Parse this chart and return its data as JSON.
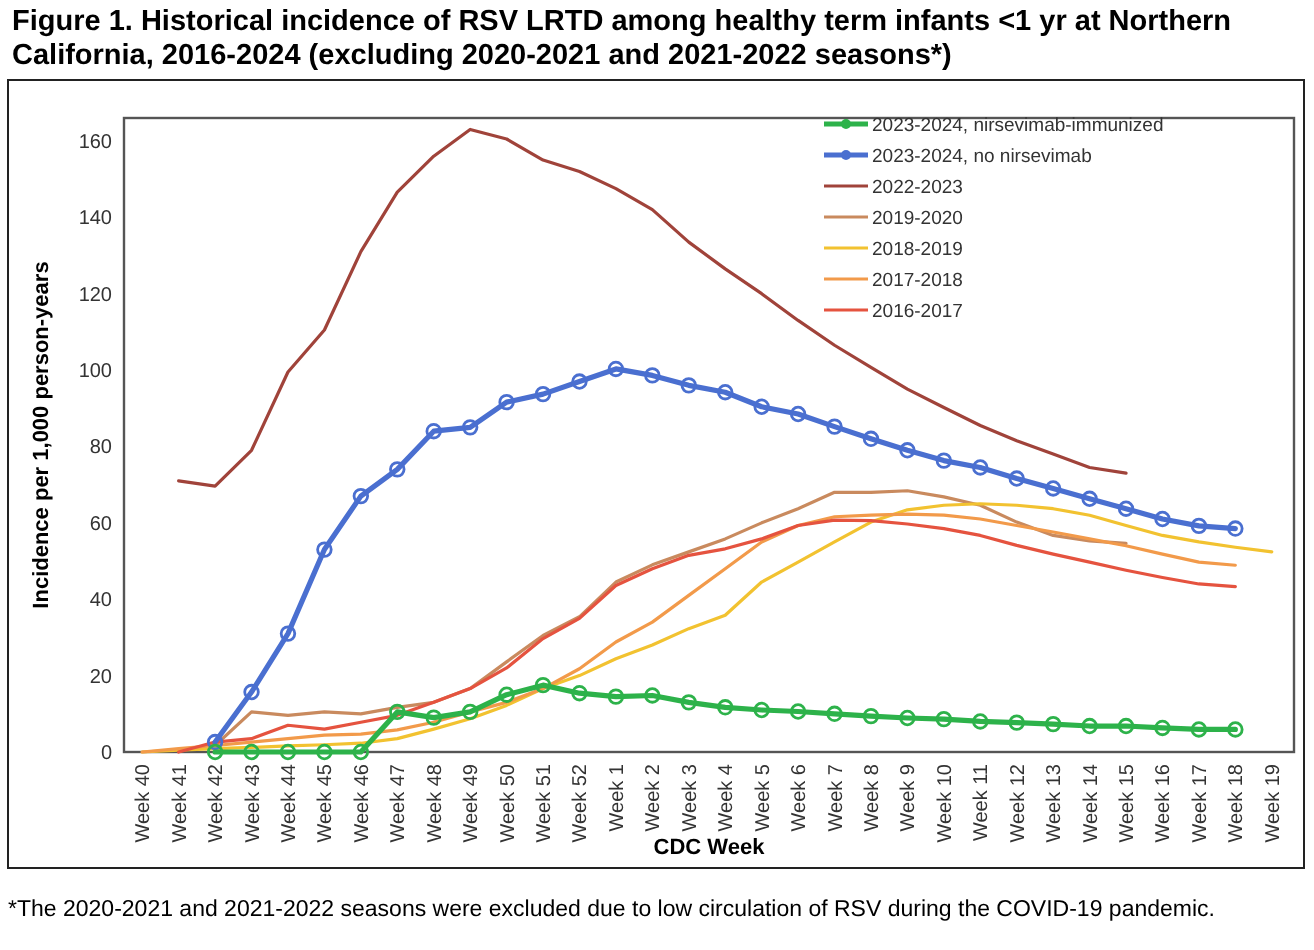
{
  "chart_data": {
    "type": "line",
    "title": "Figure 1. Historical incidence of RSV LRTD among healthy term infants <1 yr at Northern California, 2016-2024 (excluding 2020-2021 and 2021-2022 seasons*)",
    "xlabel": "CDC Week",
    "ylabel": "Incidence per 1,000 person-years",
    "annotations": [
      "*The 2020-2021 and 2021-2022 seasons were excluded due to low circulation of RSV during the COVID-19 pandemic."
    ],
    "categories": [
      "Week 40",
      "Week 41",
      "Week 42",
      "Week 43",
      "Week 44",
      "Week 45",
      "Week 46",
      "Week 47",
      "Week 48",
      "Week 49",
      "Week 50",
      "Week 51",
      "Week 52",
      "Week 1",
      "Week 2",
      "Week 3",
      "Week 4",
      "Week 5",
      "Week 6",
      "Week 7",
      "Week 8",
      "Week 9",
      "Week 10",
      "Week 11",
      "Week 12",
      "Week 13",
      "Week 14",
      "Week 15",
      "Week 16",
      "Week 17",
      "Week 18",
      "Week 19"
    ],
    "ylim": [
      0,
      166
    ],
    "yticks": [
      0,
      20,
      40,
      60,
      80,
      100,
      120,
      140,
      160
    ],
    "grid": false,
    "legend": "top right",
    "line_style": "solid",
    "series": [
      {
        "name": "2023-2024, nirsevimab-immunized",
        "color": "#2db24a",
        "marker": "circle",
        "values": [
          null,
          null,
          0,
          0,
          0,
          0,
          0,
          10.5,
          9,
          10.5,
          15,
          17.5,
          15.4,
          14.5,
          14.8,
          13,
          11.7,
          11,
          10.6,
          10,
          9.4,
          8.9,
          8.6,
          8,
          7.7,
          7.3,
          6.8,
          6.8,
          6.3,
          5.9,
          5.9,
          null
        ]
      },
      {
        "name": "2023-2024, no nirsevimab",
        "color": "#4a6fd0",
        "marker": "circle",
        "values": [
          null,
          null,
          2.6,
          15.7,
          31,
          53,
          67,
          74,
          84,
          85,
          91.6,
          93.7,
          97,
          100.3,
          98.6,
          96,
          94.2,
          90.4,
          88.5,
          85.2,
          82,
          79,
          76.3,
          74.5,
          71.6,
          69,
          66.3,
          63.7,
          61,
          59.2,
          58.5,
          null
        ]
      },
      {
        "name": "2022-2023",
        "color": "#a0433a",
        "marker": "none",
        "values": [
          null,
          71,
          69.6,
          79,
          99.5,
          110.5,
          131,
          146.6,
          156,
          163,
          160.5,
          155,
          152,
          147.5,
          142,
          133.5,
          126.5,
          120,
          113,
          106.5,
          100.7,
          95,
          90.2,
          85.5,
          81.5,
          78,
          74.5,
          73,
          null,
          null,
          null,
          null
        ]
      },
      {
        "name": "2019-2020",
        "color": "#c98a5e",
        "marker": "none",
        "values": [
          null,
          null,
          1.7,
          10.5,
          9.6,
          10.5,
          10,
          11.7,
          13,
          16.6,
          23.6,
          30.5,
          35.4,
          44.5,
          49,
          52.4,
          55.8,
          60,
          63.7,
          68,
          68,
          68.4,
          66.8,
          64.6,
          60.2,
          56.7,
          55.3,
          54.6,
          null,
          null,
          null,
          null
        ]
      },
      {
        "name": "2018-2019",
        "color": "#f2c230",
        "marker": "none",
        "values": [
          0,
          0.5,
          0.9,
          1.2,
          1.6,
          1.9,
          2.3,
          3.5,
          6,
          8.7,
          12.2,
          16.6,
          20,
          24.4,
          28,
          32.3,
          35.8,
          44.5,
          49.7,
          55,
          60.2,
          63.4,
          64.6,
          65,
          64.6,
          63.7,
          62,
          59.3,
          56.7,
          55,
          53.6,
          52.4
        ]
      },
      {
        "name": "2017-2018",
        "color": "#f29a4a",
        "marker": "none",
        "values": [
          0,
          0.9,
          1.7,
          2.6,
          3.5,
          4.4,
          4.7,
          5.8,
          7.8,
          10.5,
          13,
          16.6,
          21.8,
          28.8,
          34,
          41,
          48,
          55,
          59.3,
          61.6,
          62,
          62.3,
          62,
          61,
          59.3,
          57.6,
          55.8,
          54,
          51.8,
          49.7,
          48.9,
          null
        ]
      },
      {
        "name": "2016-2017",
        "color": "#e5533f",
        "marker": "none",
        "values": [
          null,
          0,
          2.6,
          3.5,
          7,
          6,
          7.8,
          9.6,
          13,
          16.6,
          22,
          29.7,
          35,
          43.6,
          48,
          51.5,
          53.2,
          55.8,
          59.3,
          60.7,
          60.6,
          59.7,
          58.5,
          56.7,
          54.1,
          51.8,
          49.7,
          47.6,
          45.7,
          44,
          43.3,
          null
        ]
      }
    ]
  }
}
